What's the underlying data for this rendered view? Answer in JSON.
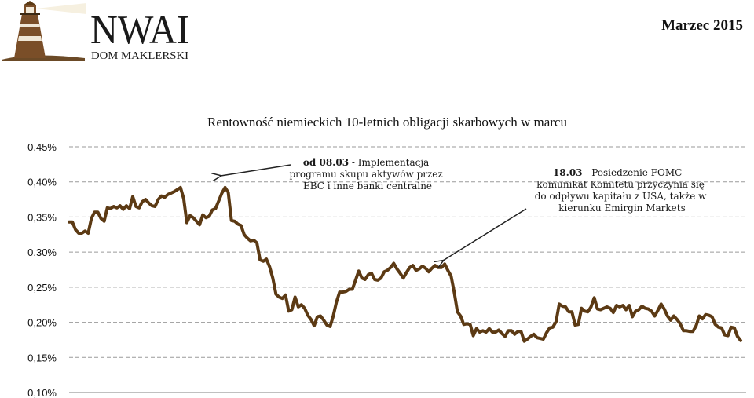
{
  "header": {
    "brand_name": "NWAI",
    "brand_sub": "DOM MAKLERSKI",
    "date_label": "Marzec 2015"
  },
  "colors": {
    "line": "#5c3a14",
    "grid": "#9a9a9a",
    "arrow": "#222222"
  },
  "chart_data": {
    "type": "line",
    "title": "Rentowność niemieckich 10-letnich obligacji skarbowych w marcu",
    "xlabel": "",
    "ylabel": "",
    "ylim": [
      0.1,
      0.45
    ],
    "yticks": [
      0.45,
      0.4,
      0.35,
      0.3,
      0.25,
      0.2,
      0.15,
      0.1
    ],
    "ytick_labels": [
      "0,45%",
      "0,40%",
      "0,35%",
      "0,30%",
      "0,25%",
      "0,20%",
      "0,15%",
      "0,10%"
    ],
    "grid": "horizontal dashed",
    "legend": "none",
    "series": [
      {
        "values": [
          0.343,
          0.343,
          0.332,
          0.327,
          0.327,
          0.33,
          0.327,
          0.348,
          0.357,
          0.357,
          0.348,
          0.344,
          0.363,
          0.362,
          0.365,
          0.363,
          0.366,
          0.361,
          0.366,
          0.362,
          0.379,
          0.365,
          0.363,
          0.372,
          0.375,
          0.37,
          0.366,
          0.365,
          0.375,
          0.38,
          0.378,
          0.382,
          0.384,
          0.386,
          0.389,
          0.392,
          0.376,
          0.342,
          0.352,
          0.349,
          0.344,
          0.339,
          0.353,
          0.349,
          0.351,
          0.36,
          0.362,
          0.373,
          0.384,
          0.392,
          0.385,
          0.345,
          0.344,
          0.34,
          0.338,
          0.325,
          0.32,
          0.316,
          0.317,
          0.313,
          0.289,
          0.287,
          0.29,
          0.279,
          0.263,
          0.24,
          0.236,
          0.234,
          0.239,
          0.216,
          0.218,
          0.236,
          0.222,
          0.225,
          0.22,
          0.21,
          0.204,
          0.195,
          0.208,
          0.209,
          0.203,
          0.196,
          0.194,
          0.209,
          0.229,
          0.243,
          0.243,
          0.244,
          0.247,
          0.247,
          0.26,
          0.273,
          0.263,
          0.261,
          0.268,
          0.27,
          0.261,
          0.26,
          0.263,
          0.272,
          0.274,
          0.278,
          0.284,
          0.276,
          0.27,
          0.263,
          0.271,
          0.278,
          0.281,
          0.274,
          0.276,
          0.28,
          0.277,
          0.272,
          0.277,
          0.281,
          0.278,
          0.278,
          0.283,
          0.274,
          0.266,
          0.243,
          0.215,
          0.209,
          0.197,
          0.198,
          0.197,
          0.181,
          0.191,
          0.186,
          0.188,
          0.186,
          0.191,
          0.186,
          0.186,
          0.189,
          0.184,
          0.18,
          0.188,
          0.188,
          0.183,
          0.187,
          0.187,
          0.173,
          0.176,
          0.18,
          0.183,
          0.178,
          0.177,
          0.176,
          0.185,
          0.192,
          0.193,
          0.201,
          0.226,
          0.223,
          0.222,
          0.215,
          0.215,
          0.196,
          0.197,
          0.22,
          0.216,
          0.215,
          0.222,
          0.235,
          0.219,
          0.218,
          0.22,
          0.222,
          0.22,
          0.214,
          0.224,
          0.222,
          0.224,
          0.218,
          0.224,
          0.208,
          0.216,
          0.218,
          0.223,
          0.22,
          0.219,
          0.216,
          0.209,
          0.217,
          0.226,
          0.219,
          0.209,
          0.203,
          0.209,
          0.204,
          0.198,
          0.188,
          0.188,
          0.187,
          0.187,
          0.195,
          0.209,
          0.205,
          0.211,
          0.21,
          0.208,
          0.197,
          0.193,
          0.192,
          0.182,
          0.181,
          0.193,
          0.192,
          0.18,
          0.174
        ]
      }
    ],
    "annotations": [
      {
        "bold": "od 08.03",
        "lines": [
          " - Implementacja",
          "programu skupu aktywów przez",
          "EBC i inne banki centralne"
        ]
      },
      {
        "bold": "18.03",
        "lines": [
          " - Posiedzenie FOMC -",
          "komunikat Komitetu przyczynia się",
          "do odpływu kapitału z USA, także w",
          "kierunku Emirgin Markets"
        ]
      }
    ]
  }
}
